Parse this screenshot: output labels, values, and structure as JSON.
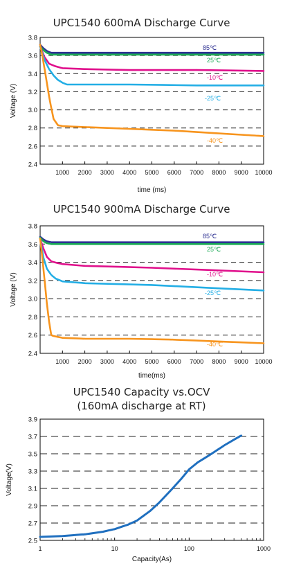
{
  "chart_data": [
    {
      "type": "line",
      "title": "UPC1540 600mA Discharge Curve",
      "xlabel": "time (ms)",
      "ylabel": "Voltage (V)",
      "xlim": [
        0,
        10000
      ],
      "ylim": [
        2.4,
        3.8
      ],
      "x_ticks": [
        1000,
        2000,
        3000,
        4000,
        5000,
        6000,
        7000,
        8000,
        9000,
        10000
      ],
      "y_ticks": [
        2.4,
        2.6,
        2.8,
        3.0,
        3.2,
        3.4,
        3.6,
        3.8
      ],
      "grid": "dashed horizontal",
      "series": [
        {
          "name": "85℃",
          "color": "#2e3192",
          "x": [
            0,
            150,
            300,
            500,
            1000,
            5000,
            10000
          ],
          "y": [
            3.72,
            3.68,
            3.65,
            3.63,
            3.63,
            3.63,
            3.63
          ]
        },
        {
          "name": "25℃",
          "color": "#1aaa55",
          "x": [
            0,
            150,
            300,
            500,
            1000,
            5000,
            10000
          ],
          "y": [
            3.7,
            3.66,
            3.63,
            3.61,
            3.61,
            3.61,
            3.61
          ]
        },
        {
          "name": "-10℃",
          "color": "#e0108c",
          "x": [
            0,
            200,
            400,
            700,
            1000,
            2000,
            4000,
            7000,
            10000
          ],
          "y": [
            3.7,
            3.58,
            3.51,
            3.48,
            3.46,
            3.45,
            3.44,
            3.44,
            3.43
          ]
        },
        {
          "name": "-25℃",
          "color": "#23aee5",
          "x": [
            0,
            200,
            400,
            600,
            800,
            1000,
            1200,
            1500,
            2000,
            4000,
            7000,
            10000
          ],
          "y": [
            3.7,
            3.55,
            3.45,
            3.38,
            3.33,
            3.3,
            3.28,
            3.28,
            3.28,
            3.28,
            3.27,
            3.27
          ]
        },
        {
          "name": "-40℃",
          "color": "#f7941d",
          "x": [
            0,
            100,
            200,
            300,
            400,
            500,
            600,
            800,
            1000,
            2000,
            4000,
            6000,
            8000,
            10000
          ],
          "y": [
            3.72,
            3.6,
            3.45,
            3.3,
            3.15,
            3.02,
            2.9,
            2.83,
            2.82,
            2.81,
            2.79,
            2.77,
            2.74,
            2.71
          ]
        }
      ]
    },
    {
      "type": "line",
      "title": "UPC1540 900mA Discharge Curve",
      "xlabel": "time(ms)",
      "ylabel": "Voltage (V)",
      "xlim": [
        0,
        10000
      ],
      "ylim": [
        2.4,
        3.8
      ],
      "x_ticks": [
        1000,
        2000,
        3000,
        4000,
        5000,
        6000,
        7000,
        8000,
        9000,
        10000
      ],
      "y_ticks": [
        2.4,
        2.6,
        2.8,
        3.0,
        3.2,
        3.4,
        3.6,
        3.8
      ],
      "grid": "dashed horizontal",
      "series": [
        {
          "name": "85℃",
          "color": "#2e3192",
          "x": [
            0,
            150,
            300,
            500,
            1000,
            5000,
            10000
          ],
          "y": [
            3.68,
            3.65,
            3.63,
            3.62,
            3.62,
            3.62,
            3.62
          ]
        },
        {
          "name": "25℃",
          "color": "#1aaa55",
          "x": [
            0,
            150,
            300,
            500,
            1000,
            5000,
            10000
          ],
          "y": [
            3.67,
            3.63,
            3.61,
            3.6,
            3.6,
            3.6,
            3.6
          ]
        },
        {
          "name": "-10℃",
          "color": "#e0108c",
          "x": [
            0,
            150,
            300,
            500,
            800,
            1000,
            2000,
            5000,
            10000
          ],
          "y": [
            3.66,
            3.55,
            3.46,
            3.41,
            3.39,
            3.38,
            3.36,
            3.34,
            3.29
          ]
        },
        {
          "name": "-25℃",
          "color": "#23aee5",
          "x": [
            0,
            150,
            300,
            500,
            700,
            1000,
            1500,
            2000,
            5000,
            10000
          ],
          "y": [
            3.66,
            3.45,
            3.33,
            3.26,
            3.22,
            3.19,
            3.18,
            3.17,
            3.15,
            3.09
          ]
        },
        {
          "name": "-40℃",
          "color": "#f7941d",
          "x": [
            0,
            100,
            200,
            300,
            400,
            500,
            600,
            800,
            1000,
            2000,
            4000,
            6000,
            8000,
            10000
          ],
          "y": [
            3.66,
            3.45,
            3.2,
            2.95,
            2.75,
            2.6,
            2.59,
            2.58,
            2.57,
            2.56,
            2.56,
            2.55,
            2.53,
            2.51
          ]
        }
      ]
    },
    {
      "type": "line",
      "title": "UPC1540 Capacity vs.OCV",
      "subtitle": "(160mA discharge at RT)",
      "xlabel": "Capacity(As)",
      "ylabel": "Voltage(V)",
      "xscale": "log",
      "xlim": [
        1,
        1000
      ],
      "ylim": [
        2.5,
        3.9
      ],
      "x_ticks": [
        1,
        10,
        100,
        1000
      ],
      "y_ticks": [
        2.5,
        2.7,
        2.9,
        3.1,
        3.3,
        3.5,
        3.7,
        3.9
      ],
      "grid": "dashed horizontal",
      "series": [
        {
          "name": "",
          "color": "#1f6fbf",
          "x": [
            1,
            2,
            4,
            7,
            10,
            15,
            20,
            30,
            40,
            60,
            80,
            100,
            130,
            200,
            300,
            500
          ],
          "y": [
            2.54,
            2.55,
            2.57,
            2.6,
            2.63,
            2.68,
            2.73,
            2.84,
            2.94,
            3.1,
            3.22,
            3.32,
            3.4,
            3.5,
            3.6,
            3.71
          ]
        }
      ]
    }
  ]
}
